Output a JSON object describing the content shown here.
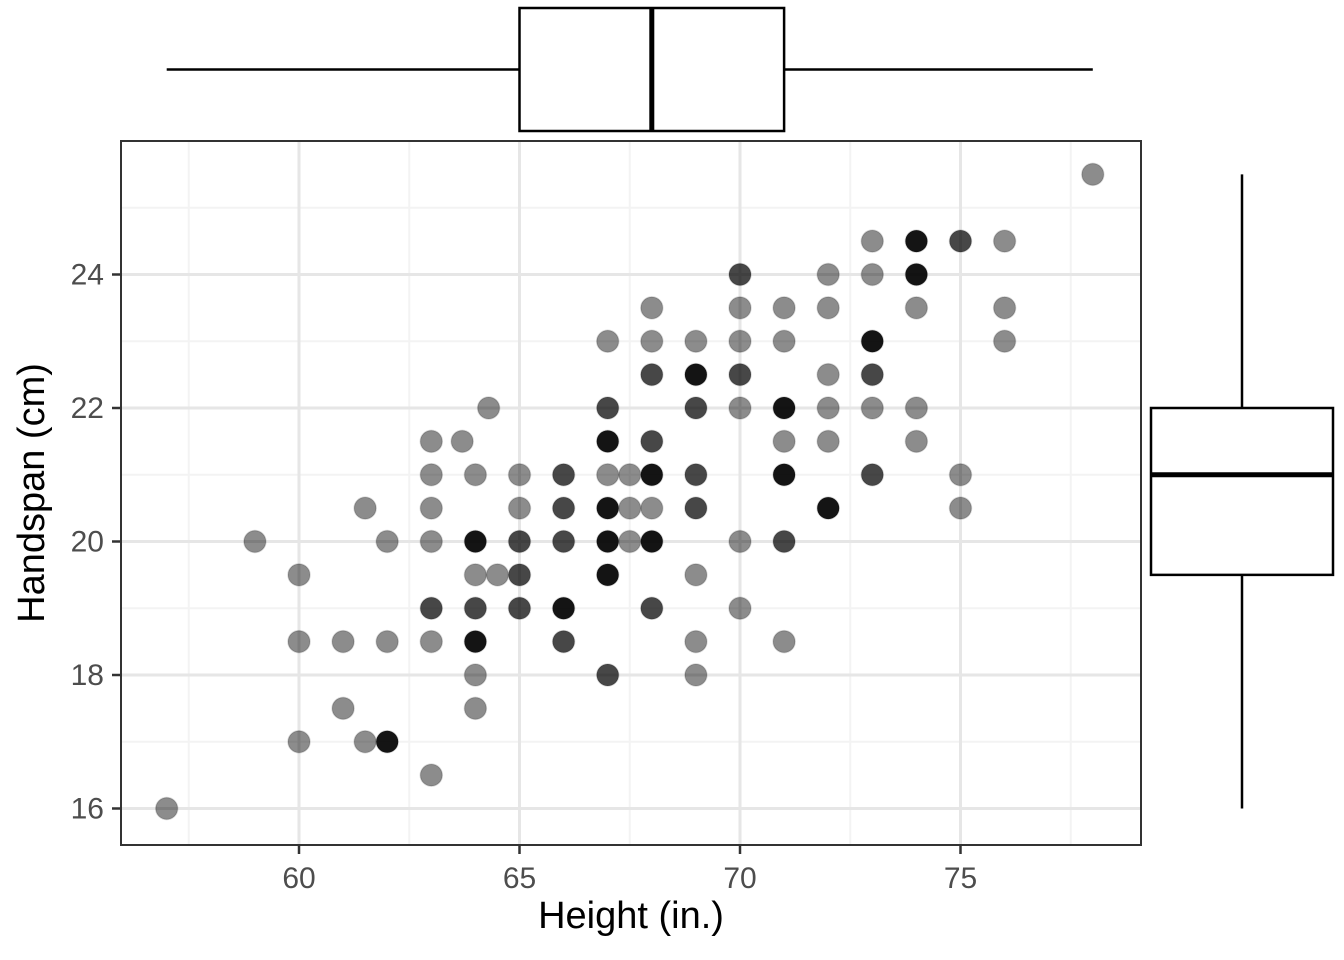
{
  "chart_data": {
    "type": "scatter",
    "title": "",
    "xlabel": "Height (in.)",
    "ylabel": "Handspan (cm)",
    "x_ticks": [
      60,
      65,
      70,
      75
    ],
    "y_ticks": [
      16,
      18,
      20,
      22,
      24
    ],
    "x_minor_ticks": [
      57.5,
      62.5,
      67.5,
      72.5,
      77.5
    ],
    "y_minor_ticks": [
      17,
      19,
      21,
      23,
      25
    ],
    "xlim": [
      56.0,
      79.1
    ],
    "ylim": [
      15.45,
      26.0
    ],
    "grid": true,
    "legend": "none",
    "marginal_boxplot_x": {
      "min": 57,
      "q1": 65,
      "median": 68,
      "q3": 71,
      "max": 78
    },
    "marginal_boxplot_y": {
      "min": 16,
      "q1": 19.5,
      "median": 21,
      "q3": 22,
      "max": 25.5
    },
    "point_alpha_by_overlap": {
      "1": 0.45,
      "2": 0.72,
      "3": 0.92
    },
    "colors": {
      "points": "#000000",
      "grid_major": "#e6e6e6",
      "grid_minor": "#f3f3f3",
      "panel_border": "#333333",
      "tick_mark": "#333333",
      "tick_label": "#4d4d4d",
      "axis_title": "#000000",
      "boxplot_stroke": "#000000",
      "background": "#ffffff"
    },
    "points": [
      [
        78,
        25.5,
        1
      ],
      [
        73,
        24.5,
        1
      ],
      [
        74,
        24.5,
        3
      ],
      [
        75,
        24.5,
        2
      ],
      [
        76,
        24.5,
        1
      ],
      [
        70,
        24,
        2
      ],
      [
        72,
        24,
        1
      ],
      [
        73,
        24,
        1
      ],
      [
        74,
        24,
        3
      ],
      [
        68,
        23.5,
        1
      ],
      [
        70,
        23.5,
        1
      ],
      [
        71,
        23.5,
        1
      ],
      [
        72,
        23.5,
        1
      ],
      [
        74,
        23.5,
        1
      ],
      [
        76,
        23.5,
        1
      ],
      [
        67,
        23,
        1
      ],
      [
        68,
        23,
        1
      ],
      [
        69,
        23,
        1
      ],
      [
        70,
        23,
        1
      ],
      [
        71,
        23,
        1
      ],
      [
        73,
        23,
        3
      ],
      [
        76,
        23,
        1
      ],
      [
        68,
        22.5,
        2
      ],
      [
        69,
        22.5,
        3
      ],
      [
        70,
        22.5,
        2
      ],
      [
        72,
        22.5,
        1
      ],
      [
        73,
        22.5,
        2
      ],
      [
        64.3,
        22,
        1
      ],
      [
        67,
        22,
        2
      ],
      [
        69,
        22,
        2
      ],
      [
        70,
        22,
        1
      ],
      [
        71,
        22,
        3
      ],
      [
        72,
        22,
        1
      ],
      [
        73,
        22,
        1
      ],
      [
        74,
        22,
        1
      ],
      [
        63,
        21.5,
        1
      ],
      [
        63.7,
        21.5,
        1
      ],
      [
        67,
        21.5,
        3
      ],
      [
        68,
        21.5,
        2
      ],
      [
        71,
        21.5,
        1
      ],
      [
        72,
        21.5,
        1
      ],
      [
        74,
        21.5,
        1
      ],
      [
        63,
        21,
        1
      ],
      [
        64,
        21,
        1
      ],
      [
        65,
        21,
        1
      ],
      [
        66,
        21,
        2
      ],
      [
        67,
        21,
        1
      ],
      [
        67.5,
        21,
        1
      ],
      [
        68,
        21,
        3
      ],
      [
        69,
        21,
        2
      ],
      [
        71,
        21,
        3
      ],
      [
        73,
        21,
        2
      ],
      [
        75,
        21,
        1
      ],
      [
        61.5,
        20.5,
        1
      ],
      [
        63,
        20.5,
        1
      ],
      [
        65,
        20.5,
        1
      ],
      [
        66,
        20.5,
        2
      ],
      [
        67,
        20.5,
        3
      ],
      [
        67.5,
        20.5,
        1
      ],
      [
        68,
        20.5,
        1
      ],
      [
        69,
        20.5,
        2
      ],
      [
        72,
        20.5,
        3
      ],
      [
        75,
        20.5,
        1
      ],
      [
        59,
        20,
        1
      ],
      [
        62,
        20,
        1
      ],
      [
        63,
        20,
        1
      ],
      [
        64,
        20,
        3
      ],
      [
        65,
        20,
        2
      ],
      [
        66,
        20,
        2
      ],
      [
        67,
        20,
        3
      ],
      [
        67.5,
        20,
        1
      ],
      [
        68,
        20,
        3
      ],
      [
        70,
        20,
        1
      ],
      [
        71,
        20,
        2
      ],
      [
        60,
        19.5,
        1
      ],
      [
        64,
        19.5,
        1
      ],
      [
        64.5,
        19.5,
        1
      ],
      [
        65,
        19.5,
        2
      ],
      [
        67,
        19.5,
        3
      ],
      [
        69,
        19.5,
        1
      ],
      [
        63,
        19,
        2
      ],
      [
        64,
        19,
        2
      ],
      [
        65,
        19,
        2
      ],
      [
        66,
        19,
        3
      ],
      [
        68,
        19,
        2
      ],
      [
        70,
        19,
        1
      ],
      [
        60,
        18.5,
        1
      ],
      [
        61,
        18.5,
        1
      ],
      [
        62,
        18.5,
        1
      ],
      [
        63,
        18.5,
        1
      ],
      [
        64,
        18.5,
        3
      ],
      [
        66,
        18.5,
        2
      ],
      [
        69,
        18.5,
        1
      ],
      [
        71,
        18.5,
        1
      ],
      [
        64,
        18,
        1
      ],
      [
        67,
        18,
        2
      ],
      [
        69,
        18,
        1
      ],
      [
        61,
        17.5,
        1
      ],
      [
        64,
        17.5,
        1
      ],
      [
        60,
        17,
        1
      ],
      [
        61.5,
        17,
        1
      ],
      [
        62,
        17,
        3
      ],
      [
        63,
        16.5,
        1
      ],
      [
        57,
        16,
        1
      ]
    ]
  }
}
